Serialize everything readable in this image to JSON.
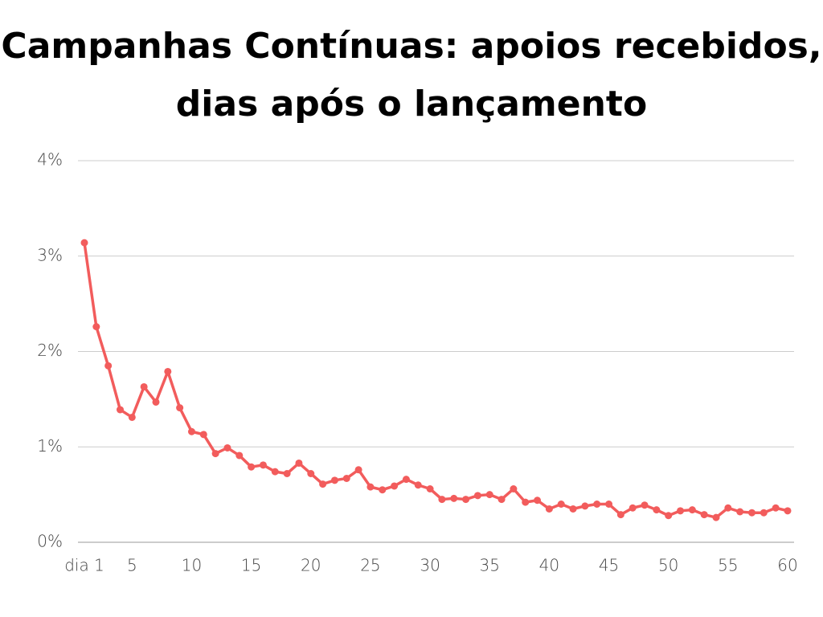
{
  "chart_data": {
    "type": "line",
    "title": "Campanhas Contínuas: apoios recebidos, dias após o lançamento",
    "x": [
      1,
      2,
      3,
      4,
      5,
      6,
      7,
      8,
      9,
      10,
      11,
      12,
      13,
      14,
      15,
      16,
      17,
      18,
      19,
      20,
      21,
      22,
      23,
      24,
      25,
      26,
      27,
      28,
      29,
      30,
      31,
      32,
      33,
      34,
      35,
      36,
      37,
      38,
      39,
      40,
      41,
      42,
      43,
      44,
      45,
      46,
      47,
      48,
      49,
      50,
      51,
      52,
      53,
      54,
      55,
      56,
      57,
      58,
      59,
      60
    ],
    "series": [
      {
        "name": "apoios",
        "color": "#f25c5c",
        "values": [
          3.14,
          2.26,
          1.85,
          1.39,
          1.31,
          1.63,
          1.47,
          1.79,
          1.41,
          1.16,
          1.13,
          0.93,
          0.99,
          0.91,
          0.79,
          0.81,
          0.74,
          0.72,
          0.83,
          0.72,
          0.61,
          0.65,
          0.67,
          0.76,
          0.58,
          0.55,
          0.59,
          0.66,
          0.6,
          0.56,
          0.45,
          0.46,
          0.45,
          0.49,
          0.5,
          0.45,
          0.56,
          0.42,
          0.44,
          0.35,
          0.4,
          0.35,
          0.38,
          0.4,
          0.4,
          0.29,
          0.36,
          0.39,
          0.34,
          0.28,
          0.33,
          0.34,
          0.29,
          0.26,
          0.36,
          0.32,
          0.31,
          0.31,
          0.36,
          0.33
        ]
      }
    ],
    "xlim": [
      1,
      60
    ],
    "xticks": [
      {
        "value": 1,
        "label": "dia 1"
      },
      5,
      10,
      15,
      20,
      25,
      30,
      35,
      40,
      45,
      50,
      55,
      60
    ],
    "ylim": [
      0,
      4
    ],
    "yticks": [
      {
        "value": 0,
        "label": "0%"
      },
      {
        "value": 1,
        "label": "1%"
      },
      {
        "value": 2,
        "label": "2%"
      },
      {
        "value": 3,
        "label": "3%"
      },
      {
        "value": 4,
        "label": "4%"
      }
    ],
    "grid": true
  }
}
